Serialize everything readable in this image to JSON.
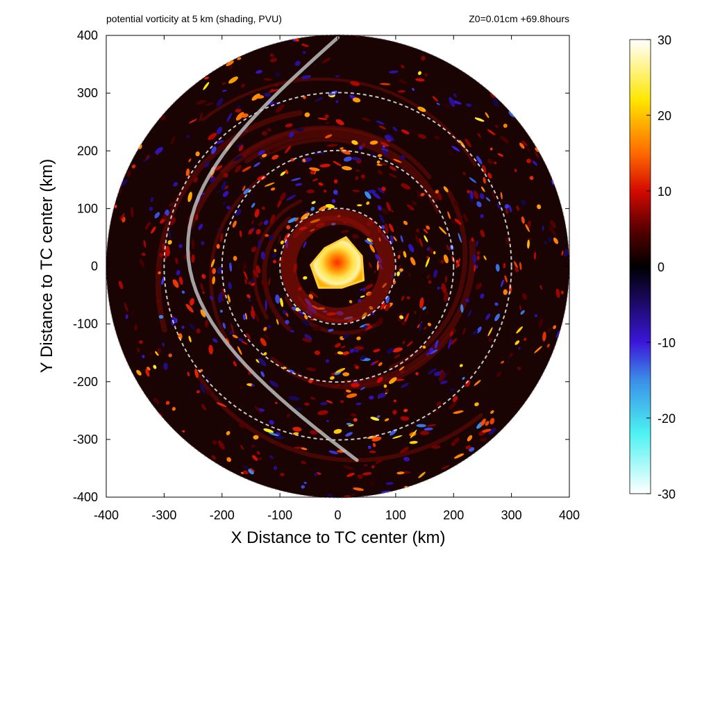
{
  "chart_data": {
    "type": "heatmap",
    "title": "potential vorticity at 5 km (shading, PVU)",
    "subtitle": "Z0=0.01cm  +69.8hours",
    "xlabel": "X Distance to TC center (km)",
    "ylabel": "Y Distance to TC center (km)",
    "xlim": [
      -400,
      400
    ],
    "ylim": [
      -400,
      400
    ],
    "x_ticks": [
      -400,
      -300,
      -200,
      -100,
      0,
      100,
      200,
      300,
      400
    ],
    "y_ticks": [
      -400,
      -300,
      -200,
      -100,
      0,
      100,
      200,
      300,
      400
    ],
    "domain_radius_km": 400,
    "range_rings_km": [
      100,
      200,
      300
    ],
    "colorbar": {
      "min": -30,
      "max": 30,
      "ticks": [
        30,
        20,
        10,
        0,
        -10,
        -20,
        -30
      ],
      "colors": [
        {
          "value": -30,
          "color": "#ffffff"
        },
        {
          "value": -22,
          "color": "#4cf2f2"
        },
        {
          "value": -15,
          "color": "#3a8ee8"
        },
        {
          "value": -10,
          "color": "#3a17d9"
        },
        {
          "value": -5,
          "color": "#1d0a6b"
        },
        {
          "value": 0,
          "color": "#000000"
        },
        {
          "value": 5,
          "color": "#5a0000"
        },
        {
          "value": 10,
          "color": "#d40a00"
        },
        {
          "value": 15,
          "color": "#ff6a00"
        },
        {
          "value": 22,
          "color": "#ffe600"
        },
        {
          "value": 30,
          "color": "#ffffff"
        }
      ]
    },
    "features": {
      "eye_core_pv": 25,
      "eye_core_radius_km": 50,
      "background_color": "#1a0303",
      "track_color": "#bdbdbd",
      "ring_color": "#c8c8c8"
    }
  }
}
